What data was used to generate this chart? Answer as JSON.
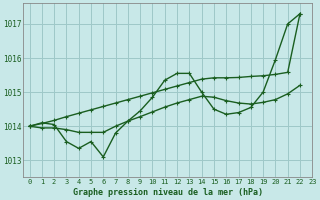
{
  "bg_color": "#c8e8e8",
  "grid_color": "#9ec8c8",
  "line_color": "#1a5e20",
  "xlabel": "Graphe pression niveau de la mer (hPa)",
  "xlim": [
    -0.5,
    23
  ],
  "ylim": [
    1012.5,
    1017.6
  ],
  "yticks": [
    1013,
    1014,
    1015,
    1016,
    1017
  ],
  "xticks": [
    0,
    1,
    2,
    3,
    4,
    5,
    6,
    7,
    8,
    9,
    10,
    11,
    12,
    13,
    14,
    15,
    16,
    17,
    18,
    19,
    20,
    21,
    22,
    23
  ],
  "series": [
    [
      1014.0,
      1014.1,
      1014.05,
      1013.55,
      1013.35,
      1013.55,
      1013.1,
      1013.8,
      1014.15,
      1014.45,
      1014.85,
      1015.35,
      1015.55,
      1015.55,
      1015.0,
      1014.5,
      1014.35,
      1014.4,
      1014.55,
      1015.0,
      1015.95,
      1017.0,
      1017.3
    ],
    [
      1014.0,
      1013.95,
      1013.95,
      1013.9,
      1013.82,
      1013.82,
      1013.82,
      1014.0,
      1014.15,
      1014.28,
      1014.42,
      1014.56,
      1014.68,
      1014.78,
      1014.88,
      1014.85,
      1014.75,
      1014.68,
      1014.65,
      1014.7,
      1014.78,
      1014.95,
      1015.2
    ],
    [
      1014.0,
      1014.08,
      1014.17,
      1014.28,
      1014.38,
      1014.48,
      1014.58,
      1014.68,
      1014.78,
      1014.88,
      1014.98,
      1015.08,
      1015.18,
      1015.28,
      1015.38,
      1015.42,
      1015.42,
      1015.43,
      1015.46,
      1015.48,
      1015.52,
      1015.58,
      1017.3
    ]
  ],
  "spine_color": "#888888",
  "tick_label_fontsize": 5.0,
  "xlabel_fontsize": 6.0
}
